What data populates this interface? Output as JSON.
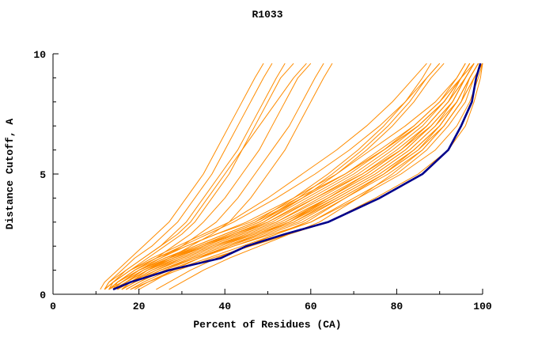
{
  "chart_data": {
    "type": "line",
    "title": "R1033",
    "xlabel": "Percent of Residues (CA)",
    "ylabel": "Distance Cutoff, A",
    "xlim": [
      0,
      100
    ],
    "ylim": [
      0,
      10
    ],
    "xticks": [
      0,
      20,
      40,
      60,
      80,
      100
    ],
    "xticks_minor": [
      10,
      30,
      50,
      70,
      90
    ],
    "yticks": [
      0,
      5,
      10
    ],
    "yticks_minor": [
      1,
      2,
      3,
      4,
      6,
      7,
      8,
      9
    ],
    "grid": false,
    "legend": "none",
    "colors": {
      "ensemble": "#FF8C00",
      "highlight": "#00008B",
      "axis": "#000000",
      "background": "#FFFFFF"
    },
    "y_levels": [
      0.2,
      0.5,
      1,
      1.5,
      2,
      2.5,
      3,
      4,
      5,
      6,
      7,
      8,
      9,
      9.6
    ],
    "highlight_x": [
      14,
      18,
      27,
      39,
      45,
      54,
      64,
      76,
      86,
      92,
      95,
      97.5,
      98.5,
      99.5
    ],
    "ensemble_x": [
      [
        14,
        16,
        20,
        26,
        33,
        40,
        47,
        58,
        68,
        76,
        84,
        90,
        95,
        97
      ],
      [
        15,
        17,
        22,
        28,
        36,
        44,
        52,
        62,
        72,
        80,
        87,
        92,
        96,
        98
      ],
      [
        13,
        15,
        19,
        25,
        31,
        38,
        45,
        56,
        66,
        74,
        82,
        89,
        94,
        96
      ],
      [
        16,
        18,
        23,
        30,
        38,
        46,
        54,
        64,
        74,
        82,
        88,
        93,
        96,
        98
      ],
      [
        14,
        17,
        21,
        27,
        35,
        43,
        50,
        60,
        70,
        78,
        85,
        91,
        95,
        97
      ],
      [
        15,
        18,
        24,
        31,
        39,
        47,
        55,
        65,
        75,
        83,
        89,
        94,
        97,
        99
      ],
      [
        13,
        16,
        20,
        26,
        34,
        42,
        49,
        59,
        69,
        77,
        84,
        90,
        94,
        96
      ],
      [
        16,
        19,
        25,
        32,
        40,
        48,
        56,
        66,
        76,
        84,
        90,
        94,
        97,
        99
      ],
      [
        14,
        16,
        21,
        28,
        36,
        44,
        52,
        63,
        73,
        81,
        87,
        92,
        95,
        97
      ],
      [
        15,
        18,
        23,
        29,
        37,
        45,
        53,
        64,
        74,
        82,
        88,
        93,
        96,
        98
      ],
      [
        17,
        20,
        26,
        33,
        41,
        49,
        57,
        67,
        77,
        85,
        91,
        95,
        97,
        99
      ],
      [
        13,
        15,
        20,
        27,
        35,
        43,
        51,
        61,
        71,
        79,
        86,
        91,
        95,
        97
      ],
      [
        18,
        21,
        27,
        34,
        42,
        50,
        58,
        68,
        78,
        86,
        91,
        95,
        98,
        100
      ],
      [
        16,
        19,
        24,
        30,
        38,
        47,
        55,
        66,
        76,
        84,
        90,
        94,
        97,
        99
      ],
      [
        14,
        17,
        22,
        29,
        37,
        46,
        54,
        65,
        75,
        83,
        89,
        93,
        96,
        98
      ],
      [
        15,
        17,
        21,
        27,
        34,
        41,
        48,
        58,
        68,
        77,
        85,
        91,
        95,
        98
      ],
      [
        19,
        22,
        28,
        36,
        44,
        52,
        60,
        70,
        80,
        87,
        92,
        96,
        98,
        100
      ],
      [
        12,
        14,
        18,
        24,
        31,
        38,
        46,
        57,
        68,
        77,
        85,
        91,
        95,
        97
      ],
      [
        17,
        20,
        25,
        32,
        40,
        48,
        56,
        67,
        77,
        85,
        90,
        94,
        97,
        99
      ],
      [
        16,
        18,
        22,
        28,
        35,
        42,
        50,
        61,
        72,
        81,
        88,
        93,
        96,
        98
      ],
      [
        13,
        15,
        19,
        24,
        30,
        36,
        42,
        52,
        61,
        69,
        76,
        82,
        86,
        88
      ],
      [
        14,
        16,
        20,
        26,
        33,
        40,
        47,
        56,
        64,
        71,
        77,
        82,
        87,
        90
      ],
      [
        12,
        14,
        18,
        23,
        29,
        35,
        41,
        50,
        58,
        66,
        73,
        79,
        84,
        87
      ],
      [
        15,
        17,
        22,
        28,
        35,
        42,
        49,
        58,
        66,
        73,
        79,
        84,
        88,
        91
      ],
      [
        13,
        16,
        21,
        27,
        34,
        41,
        48,
        57,
        65,
        72,
        78,
        83,
        87,
        90
      ],
      [
        12,
        13,
        16,
        19,
        23,
        26,
        29,
        33,
        37,
        40,
        43,
        46,
        49,
        51
      ],
      [
        13,
        14,
        17,
        21,
        25,
        28,
        31,
        35,
        39,
        43,
        46,
        49,
        52,
        54
      ],
      [
        12,
        14,
        18,
        22,
        26,
        30,
        33,
        37,
        41,
        44,
        47,
        50,
        53,
        56
      ],
      [
        14,
        15,
        19,
        24,
        28,
        32,
        35,
        40,
        44,
        48,
        51,
        54,
        57,
        60
      ],
      [
        13,
        15,
        20,
        25,
        30,
        34,
        38,
        43,
        47,
        51,
        55,
        58,
        61,
        63
      ],
      [
        15,
        17,
        22,
        27,
        32,
        37,
        41,
        46,
        50,
        54,
        57,
        60,
        63,
        65
      ],
      [
        11,
        12,
        15,
        18,
        21,
        24,
        27,
        31,
        35,
        38,
        41,
        44,
        47,
        49
      ],
      [
        12,
        13,
        17,
        21,
        25,
        29,
        32,
        36,
        40,
        44,
        48,
        52,
        56,
        59
      ],
      [
        20,
        23,
        28,
        34,
        41,
        48,
        55,
        64,
        73,
        81,
        87,
        92,
        96,
        98
      ],
      [
        24,
        27,
        32,
        38,
        45,
        52,
        59,
        68,
        77,
        84,
        90,
        94,
        97,
        99
      ],
      [
        27,
        30,
        35,
        41,
        48,
        55,
        62,
        71,
        79,
        86,
        91,
        95,
        98,
        100
      ],
      [
        16,
        19,
        25,
        33,
        42,
        51,
        60,
        71,
        81,
        89,
        94,
        97,
        99,
        100
      ],
      [
        18,
        22,
        29,
        37,
        46,
        55,
        64,
        75,
        85,
        92,
        96,
        98,
        99.5,
        100
      ]
    ]
  }
}
